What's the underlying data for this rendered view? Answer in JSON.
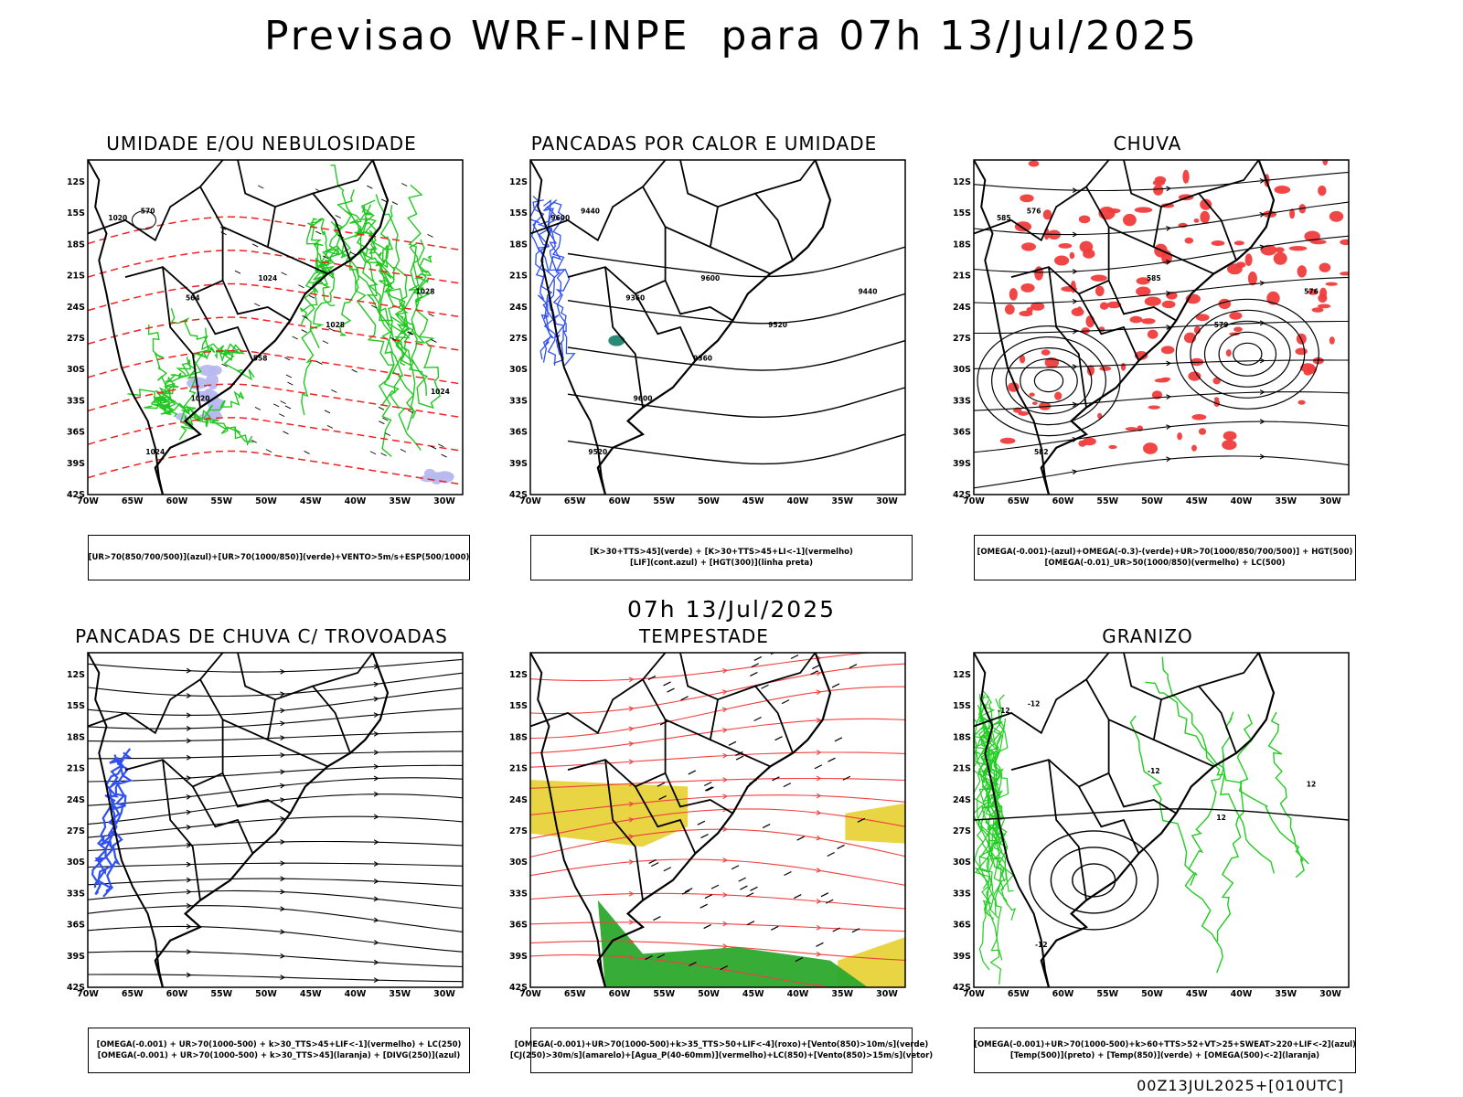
{
  "header": {
    "title": "Previsao WRF-INPE  para 07h 13/Jul/2025"
  },
  "mid_title": "07h 13/Jul/2025",
  "footer": "00Z13JUL2025+[010UTC]",
  "axes": {
    "lat_labels": [
      "12S",
      "15S",
      "18S",
      "21S",
      "24S",
      "27S",
      "30S",
      "33S",
      "36S",
      "39S",
      "42S"
    ],
    "lon_labels": [
      "70W",
      "65W",
      "60W",
      "55W",
      "50W",
      "45W",
      "40W",
      "35W",
      "30W"
    ]
  },
  "panels": [
    {
      "id": "umidade",
      "title": "UMIDADE E/OU NEBULOSIDADE",
      "legend": [
        "[UR>70(850/700/500)](azul)+[UR>70(1000/850)](verde)+VENTO>5m/s+ESP(500/1000)"
      ],
      "labels": [
        "1020",
        "1024",
        "1024",
        "1028",
        "1028",
        "570",
        "564",
        "558",
        "1020",
        "1024"
      ],
      "colors": {
        "humid_high": "#b8b8f0",
        "humid_low": "#22c822",
        "thickness": "#ee2222"
      }
    },
    {
      "id": "pancadas",
      "title": "PANCADAS POR CALOR E UMIDADE",
      "legend": [
        "[K>30+TTS>45](verde) + [K>30+TTS>45+LI<-1](vermelho)",
        "[LIF](cont.azul) + [HGT(300)](linha preta)"
      ],
      "labels": [
        "9600",
        "9600",
        "9520",
        "9520",
        "9440",
        "9440",
        "9360",
        "9360",
        "9600"
      ],
      "colors": {
        "lif": "#3050f0",
        "hgt": "#000000",
        "green": "#2a8a7a"
      }
    },
    {
      "id": "chuva",
      "title": "CHUVA",
      "legend": [
        "[OMEGA(-0.001)-(azul)+OMEGA(-0.3)-(verde)+UR>70(1000/850/700/500)] + HGT(500)",
        "[OMEGA(-0.01)_UR>50(1000/850)(vermelho) + LC(500)"
      ],
      "labels": [
        "585",
        "585",
        "582",
        "579",
        "576",
        "576"
      ],
      "colors": {
        "rain": "#f03c3c",
        "lines": "#000000"
      }
    },
    {
      "id": "trovoadas",
      "title": "PANCADAS DE CHUVA C/ TROVOADAS",
      "legend": [
        "[OMEGA(-0.001) + UR>70(1000-500) + k>30_TTS>45+LIF<-1](vermelho) + LC(250)",
        "[OMEGA(-0.001) + UR>70(1000-500) + k>30_TTS>45](laranja) + [DIVG(250)](azul)"
      ],
      "labels": [],
      "colors": {
        "conv": "#3050f0",
        "lines": "#000000"
      }
    },
    {
      "id": "tempestade",
      "title": "TEMPESTADE",
      "legend": [
        "[OMEGA(-0.001)+UR>70(1000-500)+k>35_TTS>50+LIF<-4](roxo)+[Vento(850)>10m/s](verde)",
        "[CJ(250)>30m/s](amarelo)+[Agua_P(40-60mm)](vermelho)+LC(850)+[Vento(850)>15m/s](vetor)"
      ],
      "labels": [],
      "colors": {
        "jet": "#e8d23a",
        "wind": "#2ca82c",
        "stream": "#f04040"
      }
    },
    {
      "id": "granizo",
      "title": "GRANIZO",
      "legend": [
        "[OMEGA(-0.001)+UR>70(1000-500)+k>60+TTS>52+VT>25+SWEAT>220+LIF<-2](azul)",
        "[Temp(500)](preto) + [Temp(850)](verde) + [OMEGA(500)<-2](laranja)"
      ],
      "labels": [
        "-12",
        "-12",
        "-12",
        "12",
        "12",
        "-12"
      ],
      "colors": {
        "t850": "#22cc22",
        "t500": "#000000"
      }
    }
  ]
}
